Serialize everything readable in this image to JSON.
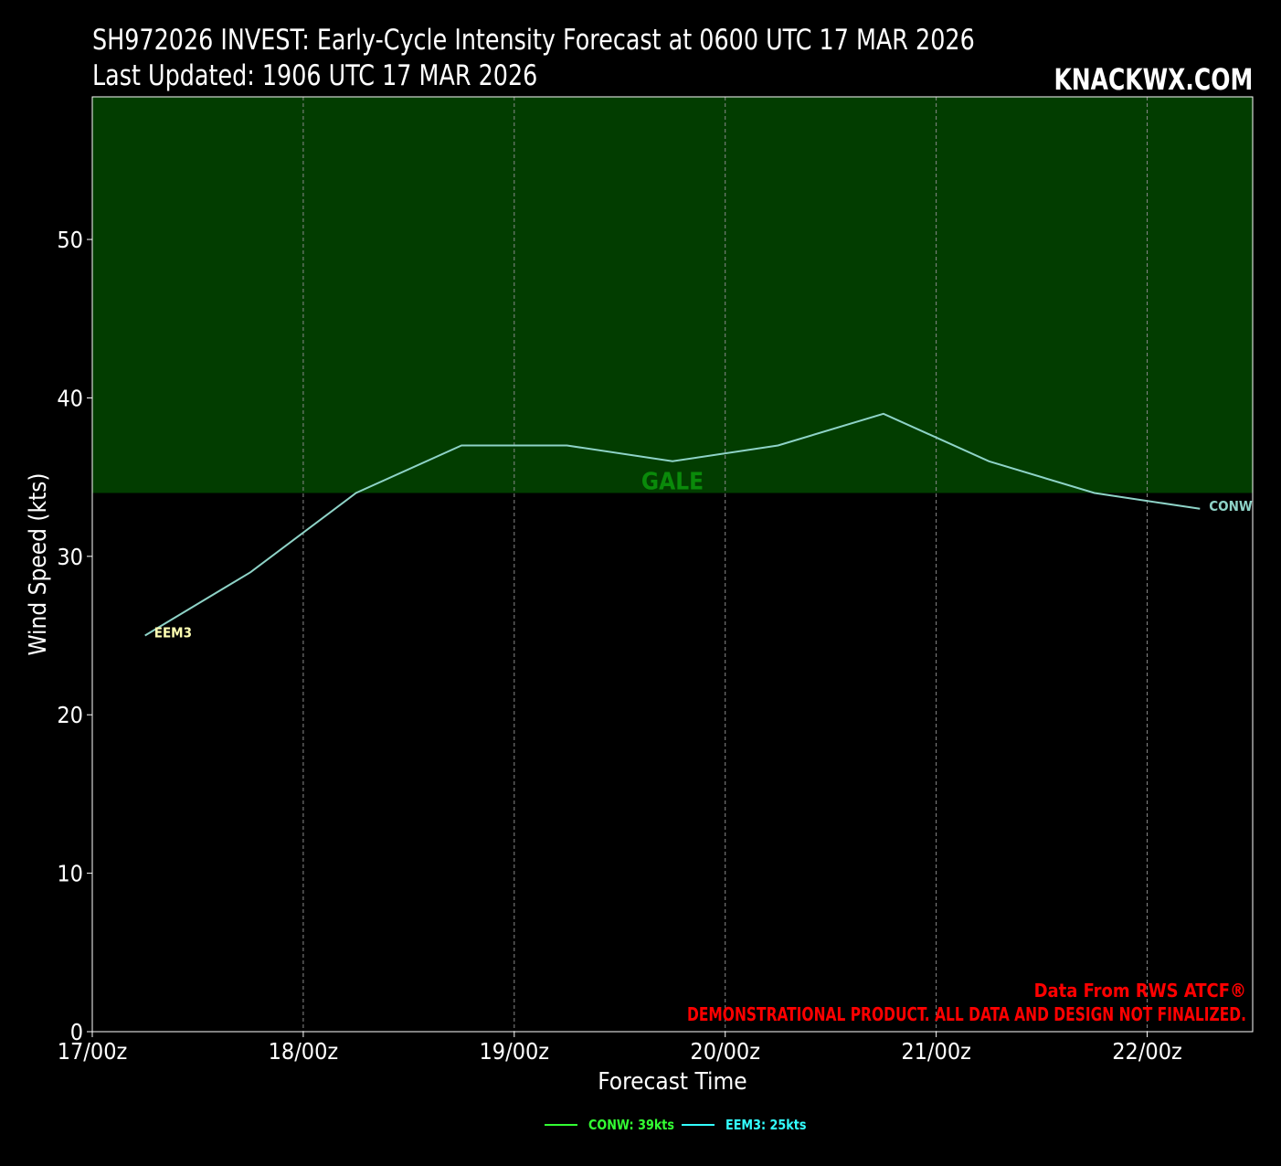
{
  "header": {
    "title_line1": "SH972026 INVEST: Early-Cycle Intensity Forecast at 0600 UTC 17 MAR 2026",
    "title_line2": "Last Updated: 1906 UTC 17 MAR 2026",
    "brand": "KNACKWX.COM"
  },
  "disclaimer": {
    "line1": "Data From RWS ATCF®",
    "line2": "DEMONSTRATIONAL PRODUCT. ALL DATA AND DESIGN NOT FINALIZED."
  },
  "legend": {
    "items": [
      {
        "label": "CONW: 39kts",
        "color": "#33ff33"
      },
      {
        "label": "EEM3: 25kts",
        "color": "#33ffff"
      }
    ]
  },
  "colors": {
    "background": "#000000",
    "gale_band": "#023d00",
    "gale_text": "#0a8a0a",
    "line": "#8ed3c7",
    "eem3_label": "#ffffb3",
    "disclaimer": "#ff0000"
  },
  "chart_data": {
    "type": "line",
    "xlabel": "Forecast Time",
    "ylabel": "Wind Speed (kts)",
    "xlim": [
      0,
      5.5
    ],
    "ylim": [
      0,
      59
    ],
    "x_ticks": [
      0,
      1,
      2,
      3,
      4,
      5
    ],
    "x_tick_labels": [
      "17/00z",
      "18/00z",
      "19/00z",
      "20/00z",
      "21/00z",
      "22/00z"
    ],
    "y_ticks": [
      0,
      10,
      20,
      30,
      40,
      50
    ],
    "y_tick_labels": [
      "0",
      "10",
      "20",
      "30",
      "40",
      "50"
    ],
    "grid": "vertical dashed",
    "threshold_bands": [
      {
        "label": "GALE",
        "from": 34,
        "to": 59
      }
    ],
    "series": [
      {
        "x": [
          0.25,
          0.75,
          1.25,
          1.75,
          2.25,
          2.75,
          3.25,
          3.75,
          4.25,
          4.75,
          5.25
        ],
        "values": [
          25,
          29,
          34,
          37,
          37,
          36,
          37,
          39,
          36,
          34,
          33
        ],
        "start_label": "EEM3",
        "end_label": "CONW"
      }
    ]
  }
}
